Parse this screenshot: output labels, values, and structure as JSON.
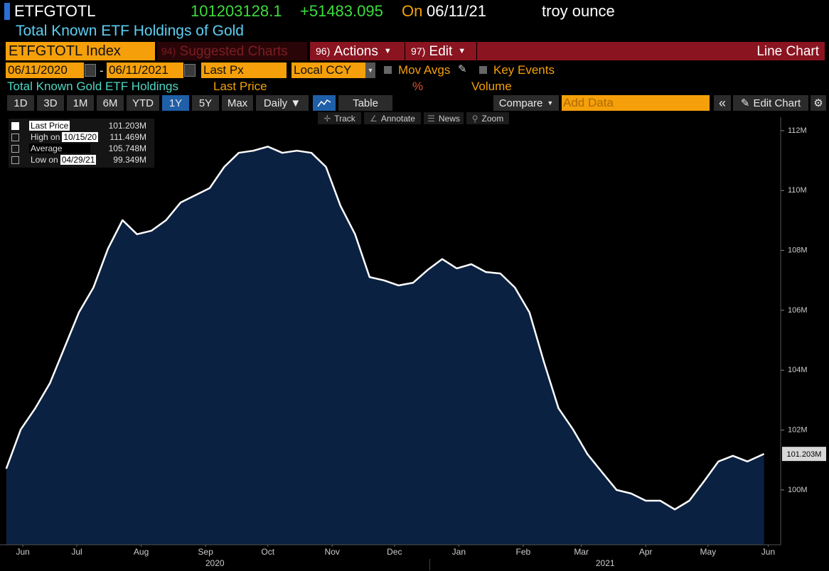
{
  "header": {
    "ticker": "ETFGTOTL",
    "price": "101203128.1",
    "change": "+51483.095",
    "on": "On",
    "date": "06/11/21",
    "unit": "troy ounce",
    "description": "Total Known ETF Holdings of Gold"
  },
  "toolbar": {
    "security": "ETFGTOTL Index",
    "menus": [
      {
        "key": "94)",
        "label": "Suggested Charts"
      },
      {
        "key": "96)",
        "label": "Actions"
      },
      {
        "key": "97)",
        "label": "Edit"
      }
    ],
    "chart_type": "Line Chart"
  },
  "settings": {
    "start": "06/11/2020",
    "dash": "-",
    "end": "06/11/2021",
    "field": "Last Px",
    "currency": "Local CCY",
    "mov_avgs": "Mov Avgs",
    "key_events": "Key Events"
  },
  "series_bar": {
    "name": "Total Known Gold ETF Holdings",
    "price": "Last Price",
    "pct": "%",
    "volume": "Volume"
  },
  "periods": [
    "1D",
    "3D",
    "1M",
    "6M",
    "YTD",
    "1Y",
    "5Y",
    "Max"
  ],
  "active_period": 5,
  "controls": {
    "frequency": "Daily ▼",
    "table": "Table",
    "compare": "Compare",
    "add_data": "Add Data",
    "edit_chart": "Edit Chart"
  },
  "tools": [
    "Track",
    "Annotate",
    "News",
    "Zoom"
  ],
  "legend_box": [
    {
      "label": "Last Price",
      "value": "101.203M"
    },
    {
      "label": "High on",
      "date": "10/15/20",
      "value": "111.469M"
    },
    {
      "label": "Average",
      "value": "105.748M"
    },
    {
      "label": "Low on",
      "date": "04/29/21",
      "value": "99.349M"
    }
  ],
  "chart_data": {
    "type": "line",
    "x": [
      "2020-06-11",
      "2020-06-18",
      "2020-06-25",
      "2020-07-02",
      "2020-07-09",
      "2020-07-16",
      "2020-07-23",
      "2020-07-30",
      "2020-08-06",
      "2020-08-13",
      "2020-08-20",
      "2020-08-27",
      "2020-09-03",
      "2020-09-10",
      "2020-09-17",
      "2020-09-24",
      "2020-10-01",
      "2020-10-08",
      "2020-10-15",
      "2020-10-22",
      "2020-10-29",
      "2020-11-05",
      "2020-11-12",
      "2020-11-19",
      "2020-11-26",
      "2020-12-03",
      "2020-12-10",
      "2020-12-17",
      "2020-12-24",
      "2020-12-31",
      "2021-01-07",
      "2021-01-14",
      "2021-01-21",
      "2021-01-28",
      "2021-02-04",
      "2021-02-11",
      "2021-02-18",
      "2021-02-25",
      "2021-03-04",
      "2021-03-11",
      "2021-03-18",
      "2021-03-25",
      "2021-04-01",
      "2021-04-08",
      "2021-04-15",
      "2021-04-22",
      "2021-04-29",
      "2021-05-06",
      "2021-05-13",
      "2021-05-20",
      "2021-05-27",
      "2021-06-03",
      "2021-06-11"
    ],
    "series": [
      {
        "color": "#ffffff",
        "fill": "#0b2142",
        "values": [
          100.71,
          102.02,
          102.73,
          103.56,
          104.74,
          105.93,
          106.76,
          108.06,
          109.01,
          108.54,
          108.66,
          109.01,
          109.6,
          109.84,
          110.08,
          110.79,
          111.26,
          111.33,
          111.469,
          111.26,
          111.33,
          111.26,
          110.79,
          109.49,
          108.54,
          107.11,
          107.0,
          106.83,
          106.92,
          107.35,
          107.71,
          107.4,
          107.54,
          107.28,
          107.23,
          106.76,
          105.93,
          104.27,
          102.73,
          102.02,
          101.19,
          100.59,
          100.0,
          99.88,
          99.64,
          99.64,
          99.349,
          99.64,
          100.28,
          100.95,
          101.14,
          100.95,
          101.203
        ],
        "value_labels": [
          null,
          null,
          null,
          null,
          null,
          null,
          null,
          null,
          null,
          null,
          null,
          null,
          null,
          null,
          null,
          null,
          null,
          null,
          null,
          null,
          null,
          null,
          null,
          null,
          null,
          null,
          null,
          null,
          null,
          null,
          null,
          null,
          null,
          null,
          null,
          null,
          null,
          null,
          null,
          null,
          null,
          null,
          null,
          null,
          null,
          null,
          null,
          null,
          null,
          null,
          null,
          null,
          "101.203M"
        ]
      }
    ],
    "xlim": [
      "2020-06-08",
      "2021-06-19"
    ],
    "xticks": [
      {
        "value": "2020-06-19",
        "label": "Jun"
      },
      {
        "value": "2020-07-15",
        "label": "Jul"
      },
      {
        "value": "2020-08-15",
        "label": "Aug"
      },
      {
        "value": "2020-09-15",
        "label": "Sep"
      },
      {
        "value": "2020-10-15",
        "label": "Oct"
      },
      {
        "value": "2020-11-15",
        "label": "Nov"
      },
      {
        "value": "2020-12-15",
        "label": "Dec"
      },
      {
        "value": "2021-01-15",
        "label": "Jan"
      },
      {
        "value": "2021-02-15",
        "label": "Feb"
      },
      {
        "value": "2021-03-15",
        "label": "Mar"
      },
      {
        "value": "2021-04-15",
        "label": "Apr"
      },
      {
        "value": "2021-05-15",
        "label": "May"
      },
      {
        "value": "2021-06-13",
        "label": "Jun"
      }
    ],
    "x_groups": [
      {
        "label": "2020",
        "range": [
          "2020-06-08",
          "2021-01-01"
        ]
      },
      {
        "label": "2021",
        "range": [
          "2021-01-01",
          "2021-06-19"
        ]
      }
    ],
    "ylim": [
      98.17,
      112.45
    ],
    "yticks": [
      {
        "value": 100,
        "label": "100M"
      },
      {
        "value": 102,
        "label": "102M"
      },
      {
        "value": 104,
        "label": "104M"
      },
      {
        "value": 106,
        "label": "106M"
      },
      {
        "value": 108,
        "label": "108M"
      },
      {
        "value": 110,
        "label": "110M"
      },
      {
        "value": 112,
        "label": "112M"
      }
    ],
    "grid": false
  }
}
